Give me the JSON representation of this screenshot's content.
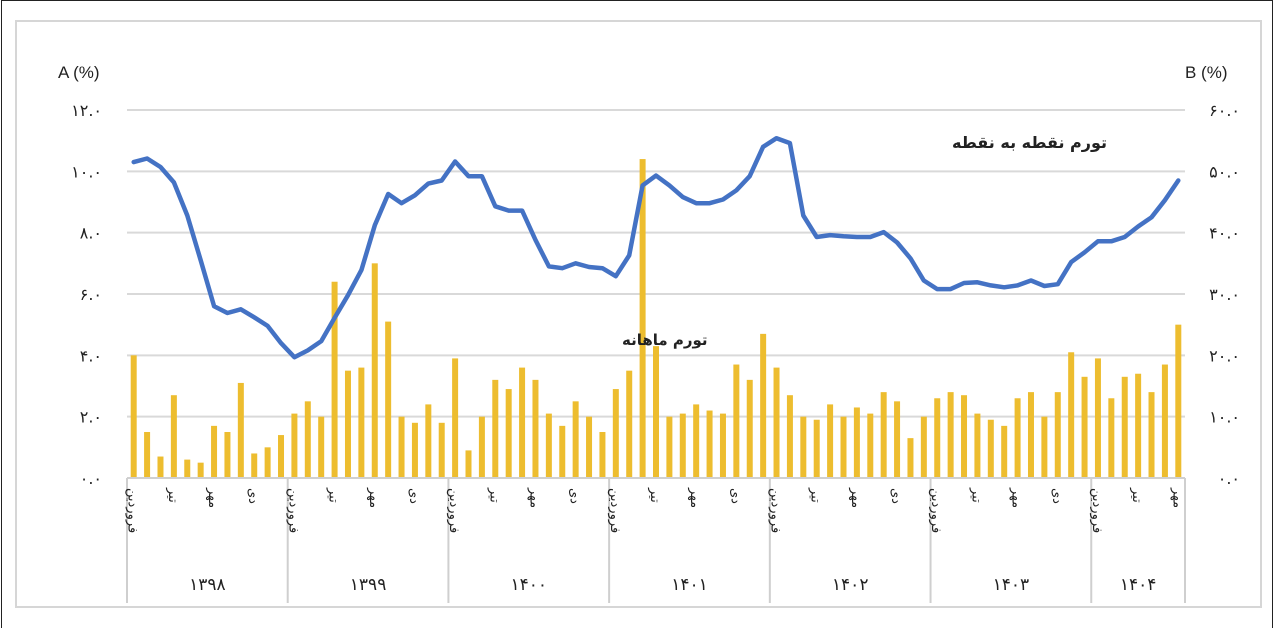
{
  "chart_data": {
    "type": "bar+line",
    "left_axis": {
      "label": "A (%)",
      "range": [
        0,
        12
      ],
      "ticks": [
        "۰.۰",
        "۲.۰",
        "۴.۰",
        "۶.۰",
        "۸.۰",
        "۱۰.۰",
        "۱۲.۰"
      ]
    },
    "right_axis": {
      "label": "B (%)",
      "range": [
        0,
        60
      ],
      "ticks": [
        "۰.۰",
        "۱۰.۰",
        "۲۰.۰",
        "۳۰.۰",
        "۴۰.۰",
        "۵۰.۰",
        "۶۰.۰"
      ]
    },
    "grid": true,
    "years": [
      {
        "label": "۱۳۹۸",
        "months": 12
      },
      {
        "label": "۱۳۹۹",
        "months": 12
      },
      {
        "label": "۱۴۰۰",
        "months": 12
      },
      {
        "label": "۱۴۰۱",
        "months": 12
      },
      {
        "label": "۱۴۰۲",
        "months": 12
      },
      {
        "label": "۱۴۰۳",
        "months": 12
      },
      {
        "label": "۱۴۰۴",
        "months": 7
      }
    ],
    "month_labels": [
      {
        "index": 0,
        "label": "فروردین"
      },
      {
        "index": 3,
        "label": "تیر"
      },
      {
        "index": 6,
        "label": "مهر"
      },
      {
        "index": 9,
        "label": "دی"
      }
    ],
    "series": [
      {
        "name": "تورم ماهانه",
        "type": "bar",
        "axis": "left",
        "color": "#EDBD2F",
        "values": [
          4.0,
          1.5,
          0.7,
          2.7,
          0.6,
          0.5,
          1.7,
          1.5,
          3.1,
          0.8,
          1.0,
          1.4,
          2.1,
          2.5,
          2.0,
          6.4,
          3.5,
          3.6,
          7.0,
          5.1,
          2.0,
          1.8,
          2.4,
          1.8,
          3.9,
          0.9,
          2.0,
          3.2,
          2.9,
          3.6,
          3.2,
          2.1,
          1.7,
          2.5,
          2.0,
          1.5,
          2.9,
          3.5,
          10.4,
          4.3,
          2.0,
          2.1,
          2.4,
          2.2,
          2.1,
          3.7,
          3.2,
          4.7,
          3.6,
          2.7,
          2.0,
          1.9,
          2.4,
          2.0,
          2.3,
          2.1,
          2.8,
          2.5,
          1.3,
          2.0,
          2.6,
          2.8,
          2.7,
          2.1,
          1.9,
          1.7,
          2.6,
          2.8,
          2.0,
          2.8,
          4.1,
          3.3,
          3.9,
          2.6,
          3.3,
          3.4,
          2.8,
          3.7,
          5.0
        ]
      },
      {
        "name": "تورم نقطه به نقطه",
        "type": "line",
        "axis": "right",
        "color": "#4472C4",
        "values": [
          51.5,
          52.1,
          50.7,
          48.2,
          42.8,
          35.5,
          28.0,
          26.9,
          27.5,
          26.2,
          24.8,
          22.0,
          19.7,
          20.8,
          22.3,
          26.1,
          29.8,
          33.9,
          41.2,
          46.3,
          44.8,
          46.1,
          48.0,
          48.5,
          51.6,
          49.2,
          49.2,
          44.3,
          43.6,
          43.6,
          38.8,
          34.5,
          34.2,
          35.0,
          34.4,
          34.2,
          32.9,
          36.3,
          47.7,
          49.3,
          47.7,
          45.8,
          44.8,
          44.8,
          45.4,
          46.9,
          49.2,
          54.0,
          55.4,
          54.6,
          42.8,
          39.3,
          39.6,
          39.4,
          39.3,
          39.3,
          40.1,
          38.4,
          35.8,
          32.2,
          30.8,
          30.8,
          31.8,
          31.9,
          31.4,
          31.1,
          31.4,
          32.2,
          31.3,
          31.6,
          35.2,
          36.8,
          38.6,
          38.6,
          39.3,
          41.0,
          42.5,
          45.3,
          48.5
        ]
      }
    ]
  }
}
